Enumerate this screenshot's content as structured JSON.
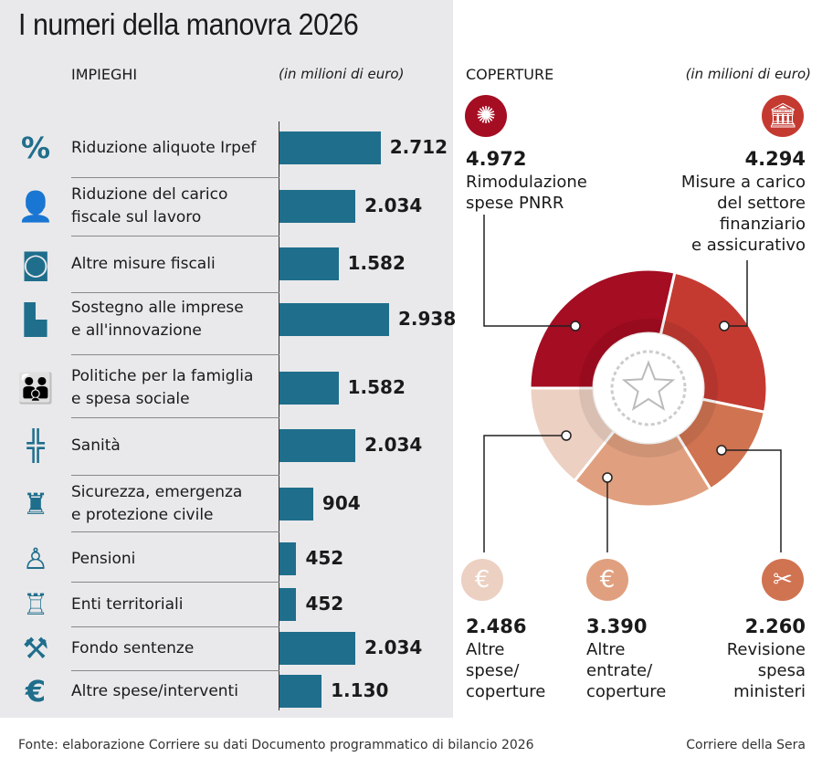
{
  "chart_data": [
    {
      "type": "bar",
      "orientation": "horizontal",
      "section": "IMPIEGHI",
      "unit": "(in milioni di euro)",
      "categories": [
        "Riduzione aliquote Irpef",
        "Riduzione del carico fiscale sul lavoro",
        "Altre misure fiscali",
        "Sostegno alle imprese e all'innovazione",
        "Politiche per la famiglia e spesa sociale",
        "Sanità",
        "Sicurezza, emergenza e protezione civile",
        "Pensioni",
        "Enti territoriali",
        "Fondo sentenze",
        "Altre spese/interventi"
      ],
      "labels": [
        [
          "Riduzione aliquote Irpef"
        ],
        [
          "Riduzione del carico",
          "fiscale sul lavoro"
        ],
        [
          "Altre misure fiscali"
        ],
        [
          "Sostegno alle imprese",
          "e all'innovazione"
        ],
        [
          "Politiche per la famiglia",
          "e spesa sociale"
        ],
        [
          "Sanità"
        ],
        [
          "Sicurezza, emergenza",
          "e protezione civile"
        ],
        [
          "Pensioni"
        ],
        [
          "Enti territoriali"
        ],
        [
          "Fondo sentenze"
        ],
        [
          "Altre spese/interventi"
        ]
      ],
      "icons": [
        "percent-icon",
        "office-worker-icon",
        "banknote-icon",
        "factory-icon",
        "family-icon",
        "health-cross-icon",
        "police-icon",
        "elderly-icon",
        "tower-icon",
        "gavel-icon",
        "euro-icon"
      ],
      "values": [
        2712,
        2034,
        1582,
        2938,
        1582,
        2034,
        904,
        452,
        452,
        2034,
        1130
      ],
      "value_labels": [
        "2.712",
        "2.034",
        "1.582",
        "2.938",
        "1.582",
        "2.034",
        "904",
        "452",
        "452",
        "2.034",
        "1.130"
      ],
      "color": "#1f6e8c"
    },
    {
      "type": "pie",
      "variant": "donut",
      "section": "COPERTURE",
      "unit": "(in milioni di euro)",
      "slices": [
        {
          "label": "Rimodulazione spese PNRR",
          "lines": [
            "Rimodulazione",
            "spese PNRR"
          ],
          "value": 4972,
          "value_label": "4.972",
          "color": "#a50d22",
          "icon": "eu-stars-icon"
        },
        {
          "label": "Misure a carico del settore finanziario e assicurativo",
          "lines": [
            "Misure a carico",
            "del settore",
            "finanziario",
            "e assicurativo"
          ],
          "value": 4294,
          "value_label": "4.294",
          "color": "#c43a31",
          "icon": "bank-icon"
        },
        {
          "label": "Revisione spesa ministeri",
          "lines": [
            "Revisione",
            "spesa",
            "ministeri"
          ],
          "value": 2260,
          "value_label": "2.260",
          "color": "#d07351",
          "icon": "scissors-icon"
        },
        {
          "label": "Altre entrate/coperture",
          "lines": [
            "Altre",
            "entrate/",
            "coperture"
          ],
          "value": 3390,
          "value_label": "3.390",
          "color": "#e0a07f",
          "icon": "euro-icon"
        },
        {
          "label": "Altre spese/coperture",
          "lines": [
            "Altre",
            "spese/",
            "coperture"
          ],
          "value": 2486,
          "value_label": "2.486",
          "color": "#ecd0c2",
          "icon": "euro-icon"
        }
      ]
    }
  ],
  "title": "I numeri della manovra 2026",
  "footer": {
    "source": "Fonte: elaborazione Corriere su dati Documento programmatico di bilancio 2026",
    "credit": "Corriere della Sera"
  }
}
